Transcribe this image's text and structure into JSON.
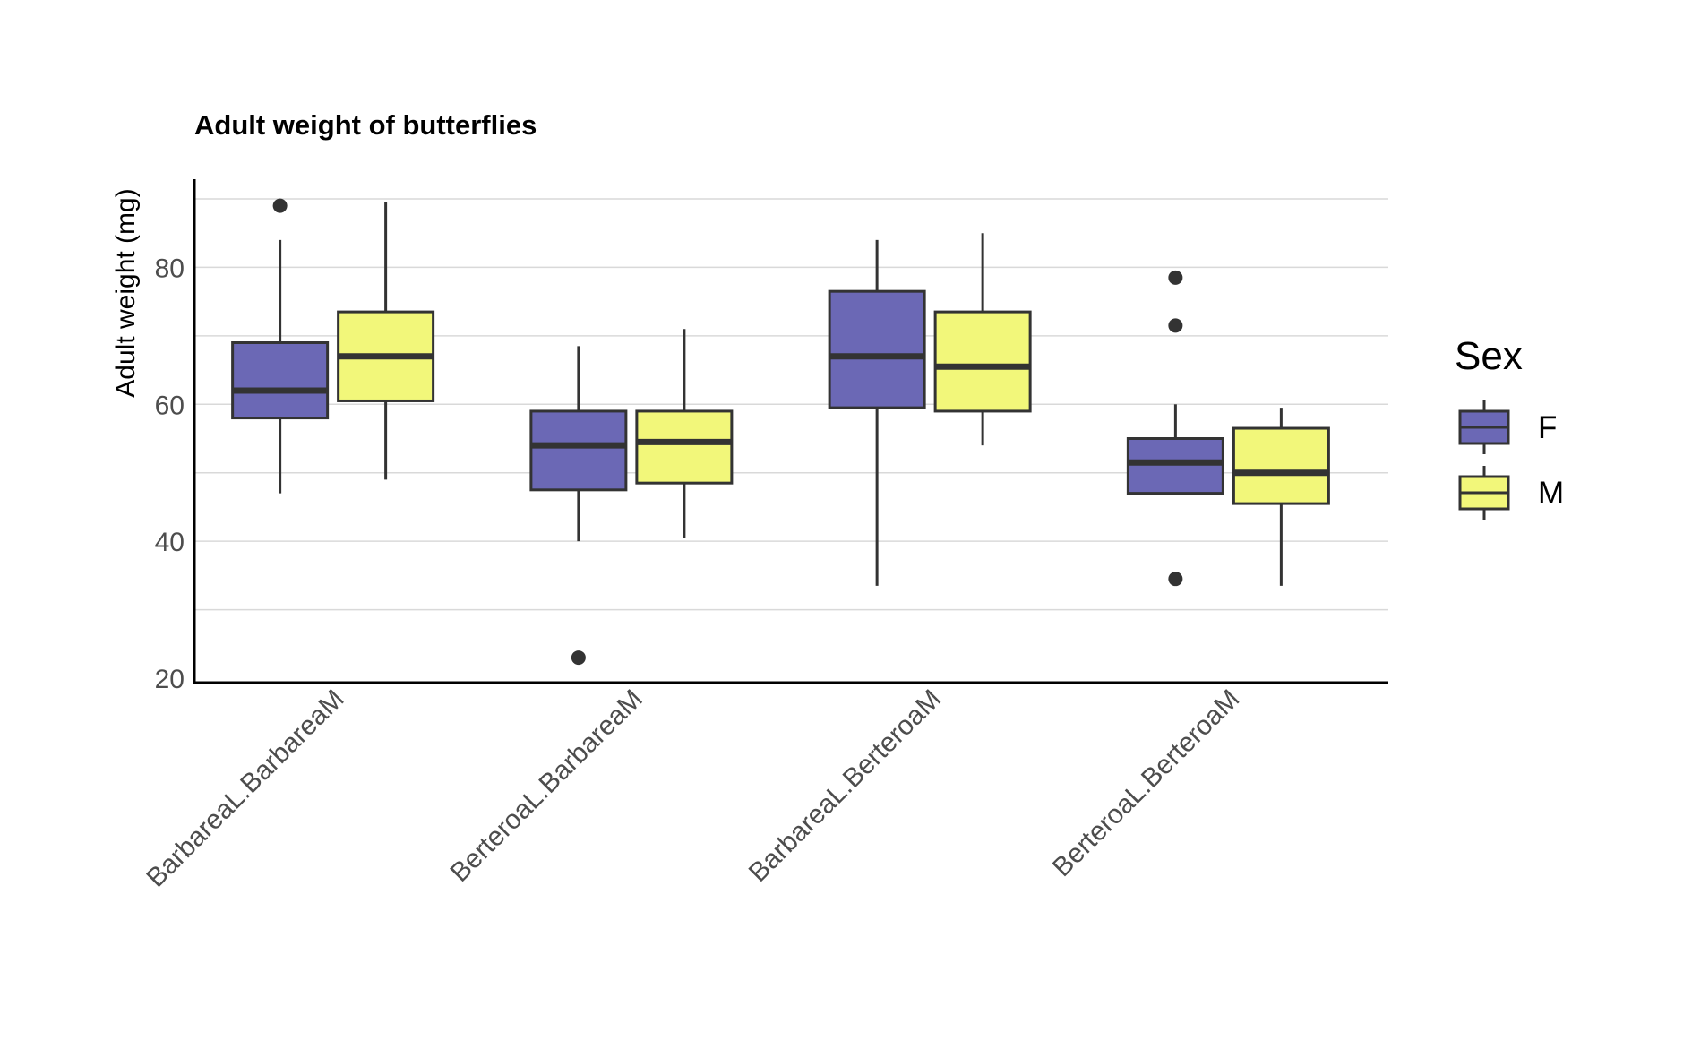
{
  "chart_data": {
    "type": "boxplot",
    "title": "Adult weight of butterflies",
    "xlabel": "",
    "ylabel": "Adult weight (mg)",
    "ylim": [
      20,
      90
    ],
    "yticks": [
      20,
      40,
      60,
      80
    ],
    "grid": "horizontal",
    "legend": {
      "title": "Sex",
      "position": "right"
    },
    "categories": [
      "BarbareaL.BarbareaM",
      "BerteroaL.BarbareaM",
      "BarbareaL.BerteroaM",
      "BerteroaL.BerteroaM"
    ],
    "series": [
      {
        "name": "F",
        "color": "#6b68b5",
        "boxes": [
          {
            "whisker_low": 47,
            "q1": 58,
            "median": 62,
            "q3": 69,
            "whisker_high": 84,
            "outliers": [
              89
            ]
          },
          {
            "whisker_low": 40,
            "q1": 47.5,
            "median": 54,
            "q3": 59,
            "whisker_high": 68.5,
            "outliers": [
              23
            ]
          },
          {
            "whisker_low": 33.5,
            "q1": 59.5,
            "median": 67,
            "q3": 76.5,
            "whisker_high": 84,
            "outliers": []
          },
          {
            "whisker_low": 47,
            "q1": 47,
            "median": 51.5,
            "q3": 55,
            "whisker_high": 60,
            "outliers": [
              78.5,
              71.5,
              34.5
            ]
          }
        ]
      },
      {
        "name": "M",
        "color": "#f2f77a",
        "boxes": [
          {
            "whisker_low": 49,
            "q1": 60.5,
            "median": 67,
            "q3": 73.5,
            "whisker_high": 89.5,
            "outliers": []
          },
          {
            "whisker_low": 40.5,
            "q1": 48.5,
            "median": 54.5,
            "q3": 59,
            "whisker_high": 71,
            "outliers": []
          },
          {
            "whisker_low": 54,
            "q1": 59,
            "median": 65.5,
            "q3": 73.5,
            "whisker_high": 85,
            "outliers": []
          },
          {
            "whisker_low": 33.5,
            "q1": 45.5,
            "median": 50,
            "q3": 56.5,
            "whisker_high": 59.5,
            "outliers": []
          }
        ]
      }
    ]
  }
}
